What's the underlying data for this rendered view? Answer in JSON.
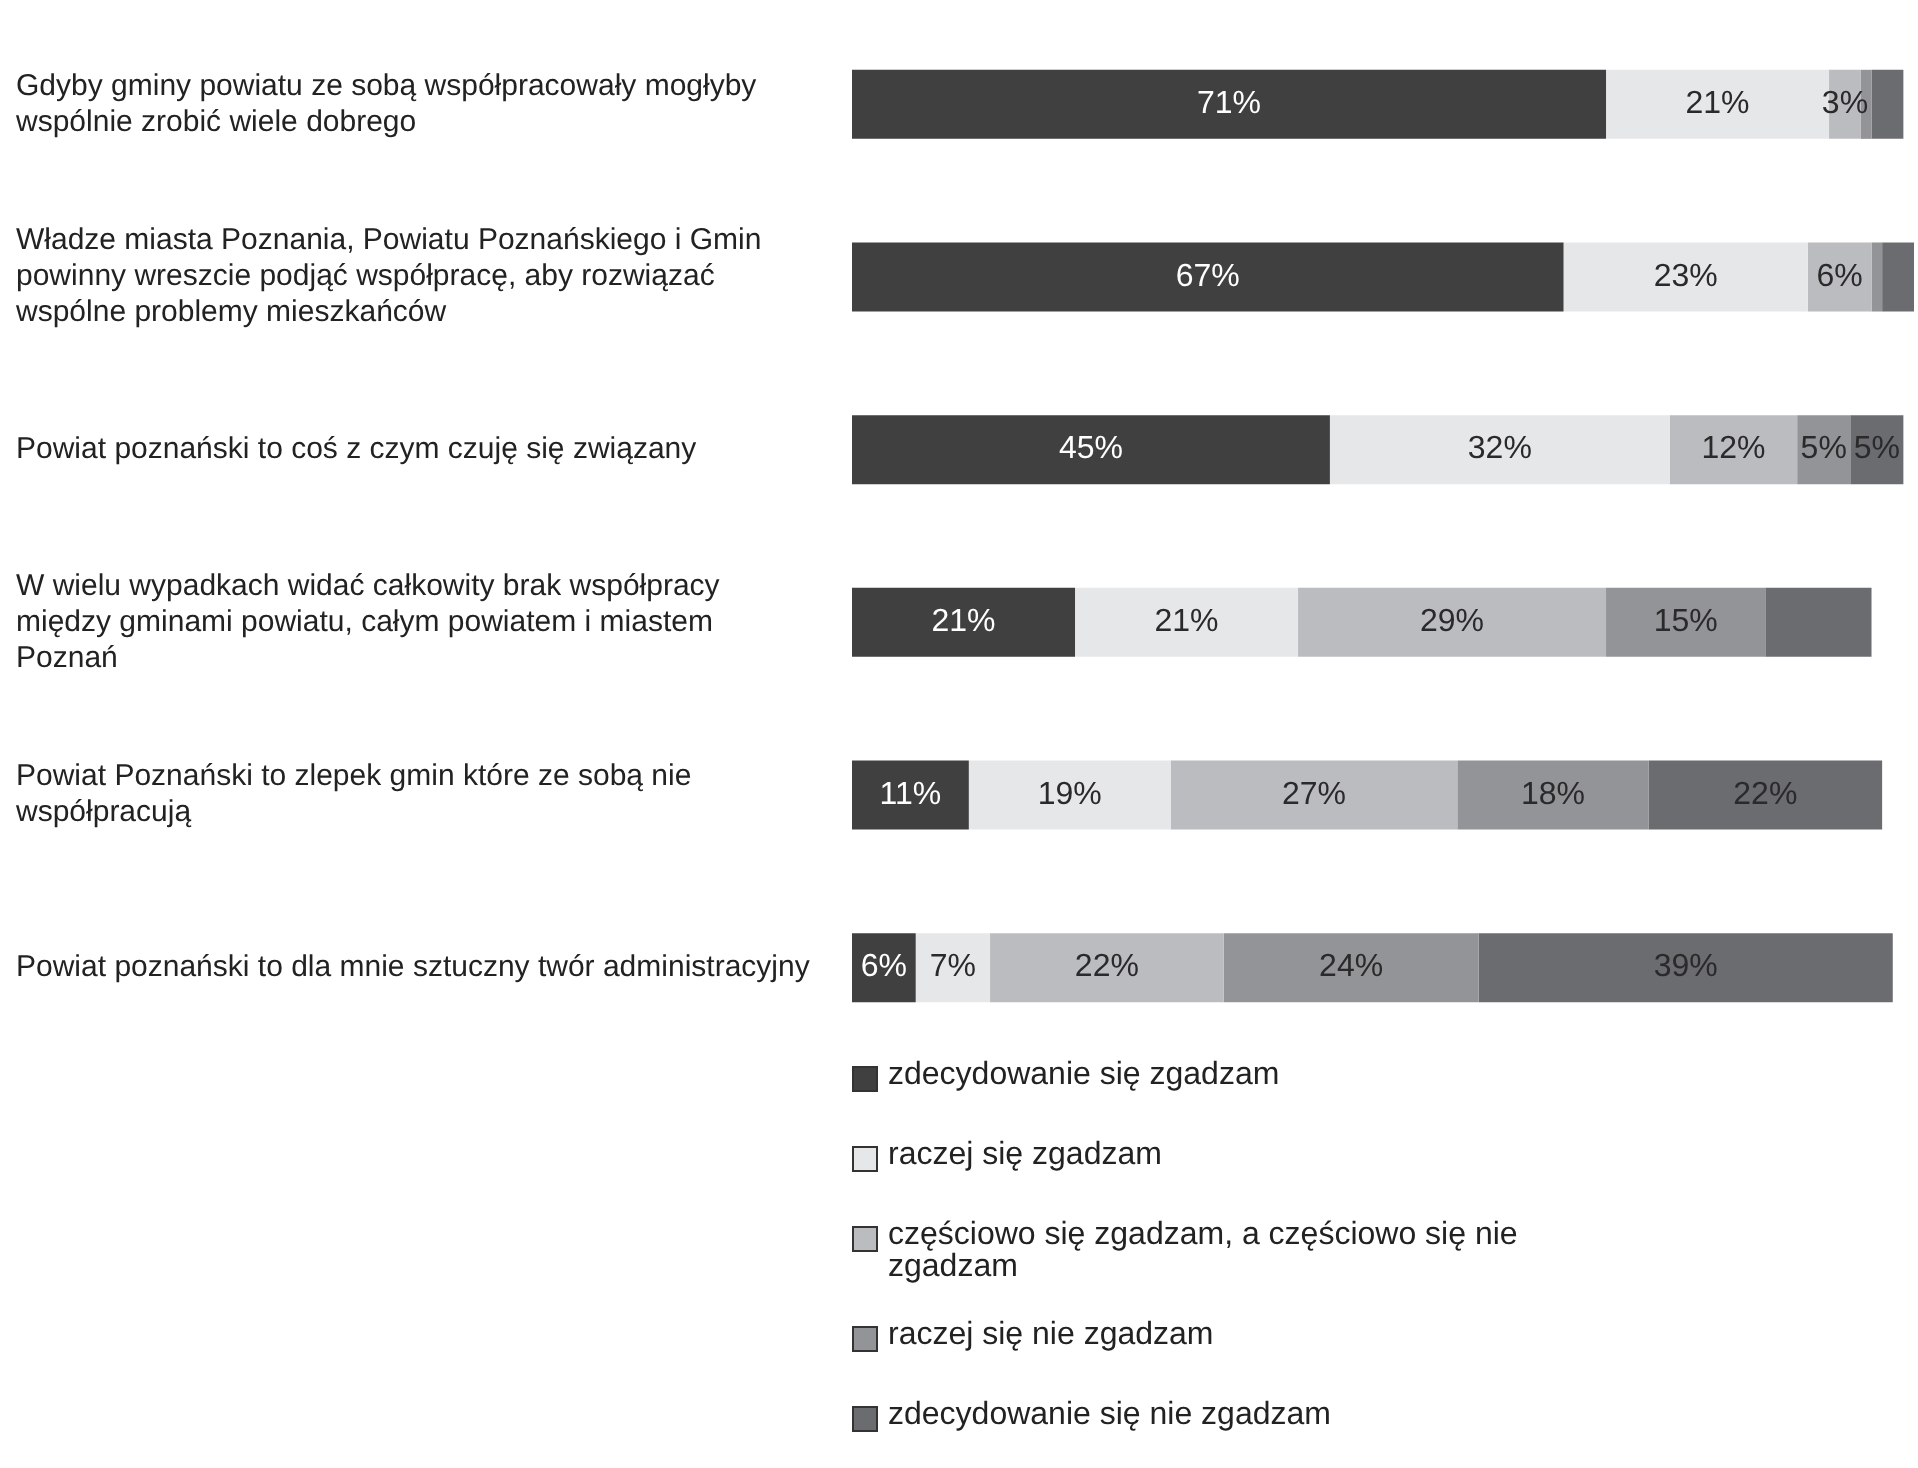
{
  "chart_data": {
    "type": "bar",
    "orientation": "horizontal",
    "stacked": true,
    "xlim": [
      0,
      100
    ],
    "tick_labels": "y",
    "legend": "bottom left",
    "categories": [
      "Gdyby gminy powiatu ze sobą współpracowały mogłyby wspólnie zrobić wiele dobrego",
      "Władze miasta Poznania, Powiatu Poznańskiego i Gmin powinny wreszcie podjąć współpracę, aby rozwiązać wspólne problemy mieszkańców",
      "Powiat poznański to coś z czym czuję się związany",
      "W wielu wypadkach widać całkowity brak współpracy między gminami powiatu, całym powiatem i miastem Poznań",
      "Powiat Poznański to zlepek gmin które ze sobą nie współpracują",
      "Powiat poznański to dla mnie sztuczny twór administracyjny"
    ],
    "series": [
      {
        "name": "zdecydowanie się zgadzam",
        "color": "#404040",
        "values": [
          71,
          67,
          45,
          21,
          11,
          6
        ],
        "value_labels": [
          "71%",
          "67%",
          "45%",
          "21%",
          "11%",
          "6%"
        ]
      },
      {
        "name": "raczej się zgadzam",
        "color": "#e6e7e9",
        "values": [
          21,
          23,
          32,
          21,
          19,
          7
        ],
        "value_labels": [
          "21%",
          "23%",
          "32%",
          "21%",
          "19%",
          "7%"
        ]
      },
      {
        "name": "częściowo się zgadzam, a częściowo się nie zgadzam",
        "color": "#bbbcc0",
        "values": [
          3,
          6,
          12,
          29,
          27,
          22
        ],
        "value_labels": [
          "3%",
          "6%",
          "12%",
          "29%",
          "27%",
          "22%"
        ]
      },
      {
        "name": "raczej się nie zgadzam",
        "color": "#939497",
        "values": [
          1,
          1,
          5,
          15,
          18,
          24
        ],
        "value_labels": [
          null,
          null,
          "5%",
          "15%",
          "18%",
          "24%"
        ]
      },
      {
        "name": "zdecydowanie się nie zgadzam",
        "color": "#6b6c70",
        "values": [
          3,
          3,
          5,
          10,
          22,
          39
        ],
        "value_labels": [
          null,
          null,
          "5%",
          null,
          "22%",
          "39%"
        ]
      }
    ]
  }
}
